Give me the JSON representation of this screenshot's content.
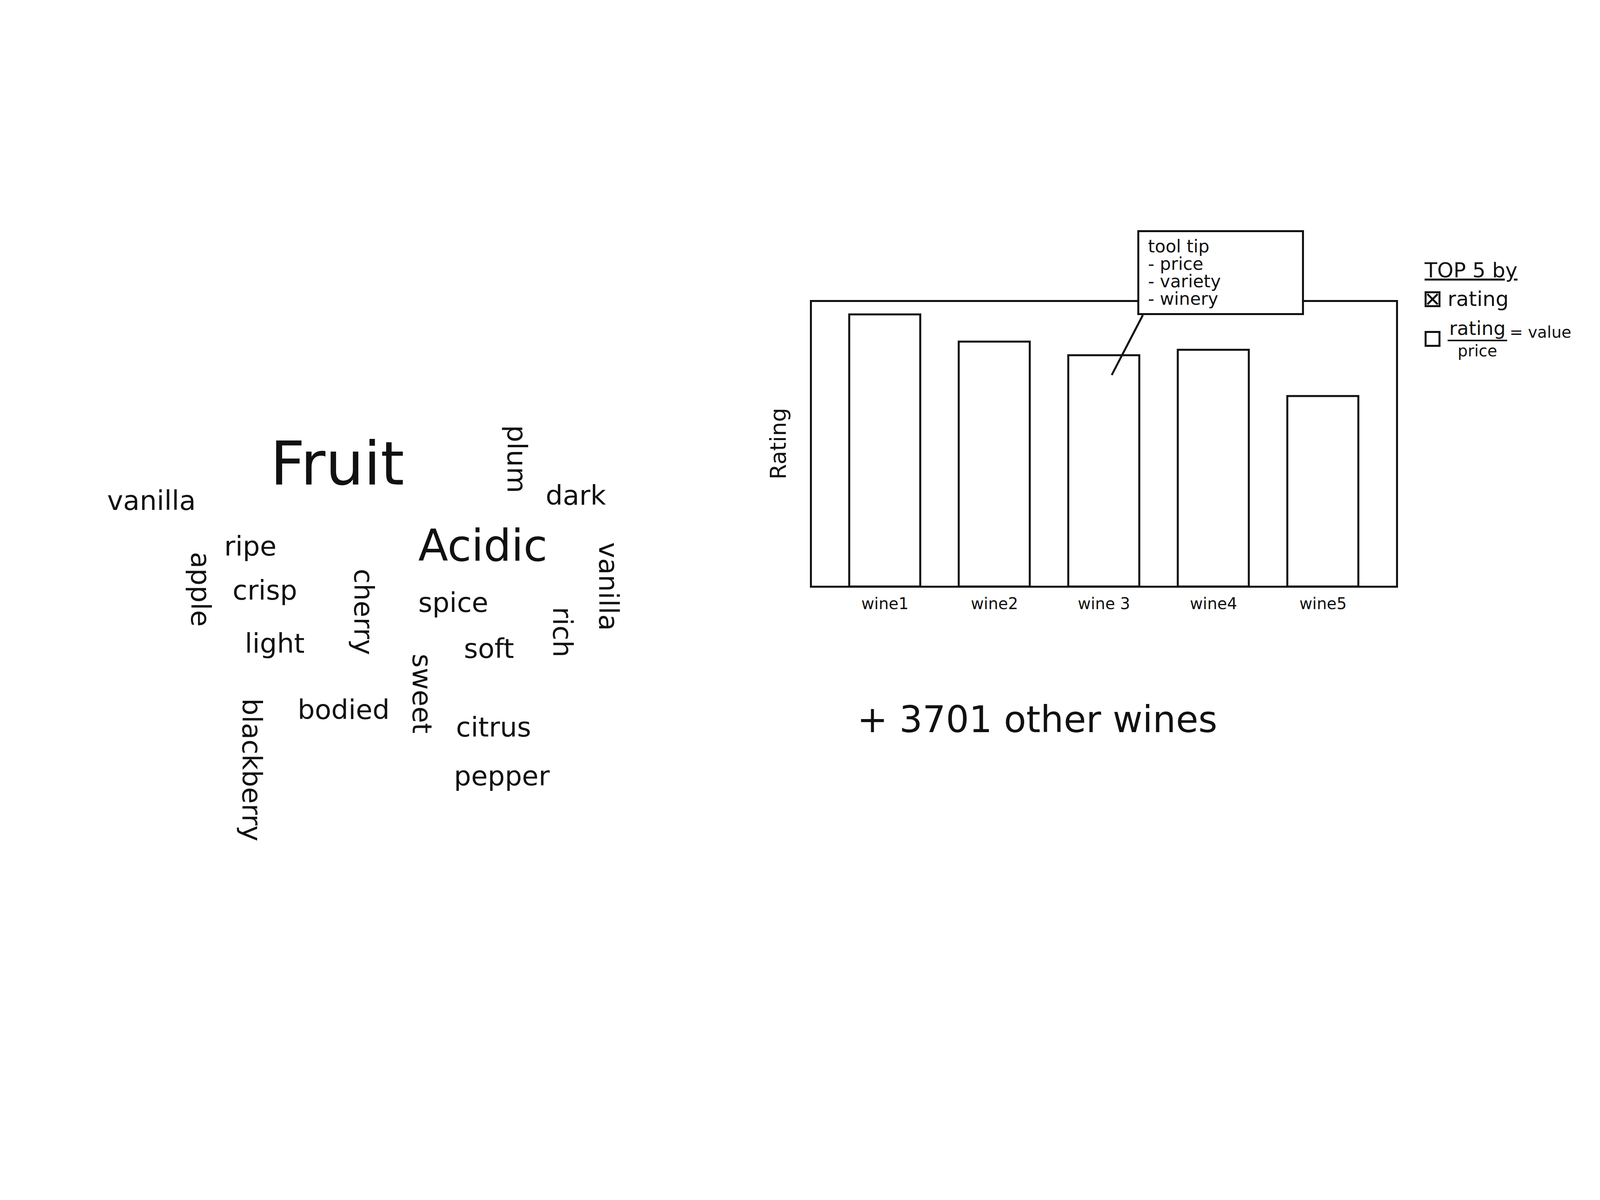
{
  "word_cloud": {
    "type": "wordcloud",
    "words": [
      "Fruit",
      "vanilla",
      "plum",
      "dark",
      "ripe",
      "apple",
      "crisp",
      "cherry",
      "Acidic",
      "vanilla",
      "spice",
      "rich",
      "light",
      "soft",
      "sweet",
      "blackberry",
      "bodied",
      "citrus",
      "pepper"
    ],
    "weights": [
      3,
      1,
      1,
      1,
      1,
      1,
      1,
      1,
      2,
      1,
      1,
      1,
      1,
      1,
      1,
      1,
      1,
      1,
      1
    ]
  },
  "chart_data": {
    "type": "bar",
    "y_label": "Rating",
    "categories": [
      "wine1",
      "wine2",
      "wine 3",
      "wine4",
      "wine5"
    ],
    "values": [
      100,
      90,
      85,
      87,
      70
    ],
    "ylim": [
      0,
      105
    ],
    "tick_labels": "x",
    "color": "#ffffff",
    "tooltip": {
      "title": "tool tip",
      "items": [
        "- price",
        "- variety",
        "- winery"
      ],
      "category": "wine 3"
    }
  },
  "controls": {
    "title": "TOP 5 by",
    "options": [
      {
        "label": "rating",
        "checked": true
      },
      {
        "label": "rating",
        "denominator": "price",
        "suffix": "= value",
        "checked": false
      }
    ]
  },
  "footer": "+ 3701 other wines"
}
